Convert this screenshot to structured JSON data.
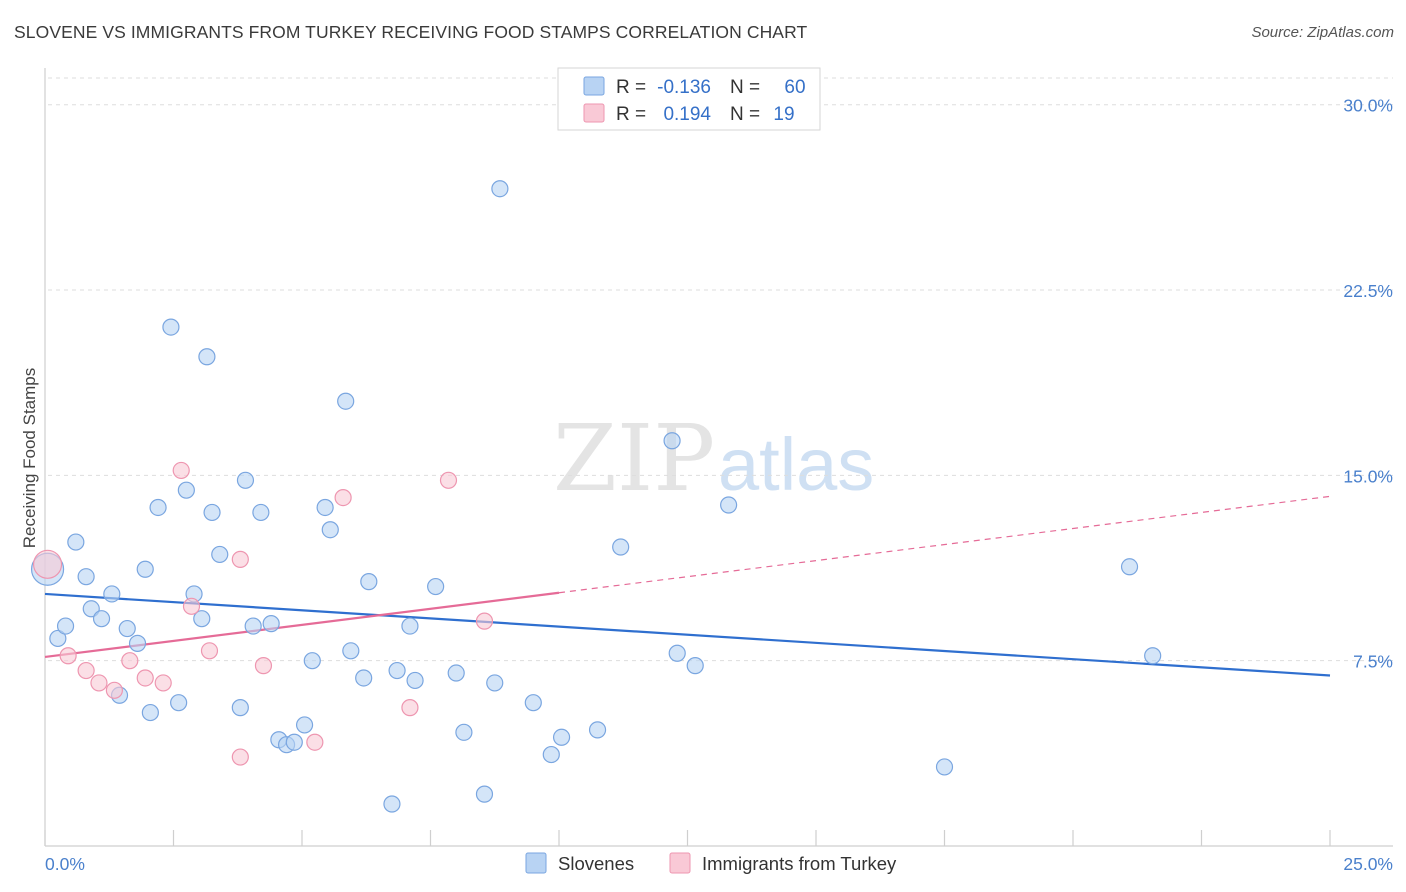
{
  "title": "SLOVENE VS IMMIGRANTS FROM TURKEY RECEIVING FOOD STAMPS CORRELATION CHART",
  "source": "Source: ZipAtlas.com",
  "watermark": {
    "zip": "ZIP",
    "atlas": "atlas"
  },
  "colors": {
    "blue_fill": "#b8d3f3",
    "blue_stroke": "#7aa6e0",
    "blue_line": "#2f6fcf",
    "pink_fill": "#f9c9d6",
    "pink_stroke": "#ee96b0",
    "pink_line": "#e56b97",
    "tick_text": "#4a80cc",
    "grid": "#dddddd"
  },
  "legend": {
    "rows": [
      {
        "r_label": "R =",
        "r_value": "-0.136",
        "n_label": "N =",
        "n_value": "60",
        "series": "blue"
      },
      {
        "r_label": "R =",
        "r_value": "0.194",
        "n_label": "N =",
        "n_value": "19",
        "series": "pink"
      }
    ]
  },
  "chart_data": {
    "type": "scatter",
    "title": "SLOVENE VS IMMIGRANTS FROM TURKEY RECEIVING FOOD STAMPS CORRELATION CHART",
    "xlabel": "",
    "ylabel": "Receiving Food Stamps",
    "xlim": [
      0,
      25
    ],
    "ylim": [
      0,
      31
    ],
    "x_tick_labels": [
      "0.0%",
      "25.0%"
    ],
    "y_ticks": [
      7.5,
      15.0,
      22.5,
      30.0
    ],
    "y_tick_labels": [
      "7.5%",
      "15.0%",
      "22.5%",
      "30.0%"
    ],
    "grid": true,
    "legend_position": "bottom",
    "series": [
      {
        "name": "Slovenes",
        "color": "blue",
        "points": [
          [
            0.05,
            11.2
          ],
          [
            0.25,
            8.4
          ],
          [
            0.4,
            8.9
          ],
          [
            0.6,
            12.3
          ],
          [
            0.8,
            10.9
          ],
          [
            0.9,
            9.6
          ],
          [
            1.1,
            9.2
          ],
          [
            1.3,
            10.2
          ],
          [
            1.45,
            6.1
          ],
          [
            1.6,
            8.8
          ],
          [
            1.8,
            8.2
          ],
          [
            1.95,
            11.2
          ],
          [
            2.05,
            5.4
          ],
          [
            2.2,
            13.7
          ],
          [
            2.45,
            21.0
          ],
          [
            2.6,
            5.8
          ],
          [
            2.75,
            14.4
          ],
          [
            2.9,
            10.2
          ],
          [
            3.05,
            9.2
          ],
          [
            3.15,
            19.8
          ],
          [
            3.25,
            13.5
          ],
          [
            3.4,
            11.8
          ],
          [
            3.8,
            5.6
          ],
          [
            3.9,
            14.8
          ],
          [
            4.05,
            8.9
          ],
          [
            4.2,
            13.5
          ],
          [
            4.4,
            9.0
          ],
          [
            4.55,
            4.3
          ],
          [
            4.7,
            4.1
          ],
          [
            4.85,
            4.2
          ],
          [
            5.05,
            4.9
          ],
          [
            5.2,
            7.5
          ],
          [
            5.45,
            13.7
          ],
          [
            5.55,
            12.8
          ],
          [
            5.85,
            18.0
          ],
          [
            5.95,
            7.9
          ],
          [
            6.2,
            6.8
          ],
          [
            6.3,
            10.7
          ],
          [
            6.75,
            1.7
          ],
          [
            6.85,
            7.1
          ],
          [
            7.1,
            8.9
          ],
          [
            7.2,
            6.7
          ],
          [
            7.6,
            10.5
          ],
          [
            8.0,
            7.0
          ],
          [
            8.15,
            4.6
          ],
          [
            8.55,
            2.1
          ],
          [
            8.75,
            6.6
          ],
          [
            8.85,
            26.6
          ],
          [
            9.5,
            5.8
          ],
          [
            9.85,
            3.7
          ],
          [
            10.05,
            4.4
          ],
          [
            10.75,
            4.7
          ],
          [
            11.2,
            12.1
          ],
          [
            12.2,
            16.4
          ],
          [
            12.3,
            7.8
          ],
          [
            12.65,
            7.3
          ],
          [
            13.3,
            13.8
          ],
          [
            17.5,
            3.2
          ],
          [
            21.1,
            11.3
          ],
          [
            21.55,
            7.7
          ]
        ]
      },
      {
        "name": "Immigrants from Turkey",
        "color": "pink",
        "points": [
          [
            0.05,
            11.4
          ],
          [
            0.45,
            7.7
          ],
          [
            0.8,
            7.1
          ],
          [
            1.05,
            6.6
          ],
          [
            1.35,
            6.3
          ],
          [
            1.65,
            7.5
          ],
          [
            1.95,
            6.8
          ],
          [
            2.3,
            6.6
          ],
          [
            2.65,
            15.2
          ],
          [
            2.85,
            9.7
          ],
          [
            3.2,
            7.9
          ],
          [
            3.8,
            3.6
          ],
          [
            3.8,
            11.6
          ],
          [
            4.25,
            7.3
          ],
          [
            5.25,
            4.2
          ],
          [
            5.8,
            14.1
          ],
          [
            7.1,
            5.6
          ],
          [
            7.85,
            14.8
          ],
          [
            8.55,
            9.1
          ]
        ]
      }
    ],
    "trend_lines": [
      {
        "series": "Slovenes",
        "x": [
          0,
          25
        ],
        "y": [
          10.2,
          6.9
        ],
        "style": "solid"
      },
      {
        "series": "Immigrants from Turkey",
        "x": [
          0,
          10
        ],
        "y": [
          7.65,
          10.25
        ],
        "style": "solid"
      },
      {
        "series": "Immigrants from Turkey",
        "x": [
          10,
          25
        ],
        "y": [
          10.25,
          14.15
        ],
        "style": "dashed"
      }
    ]
  }
}
